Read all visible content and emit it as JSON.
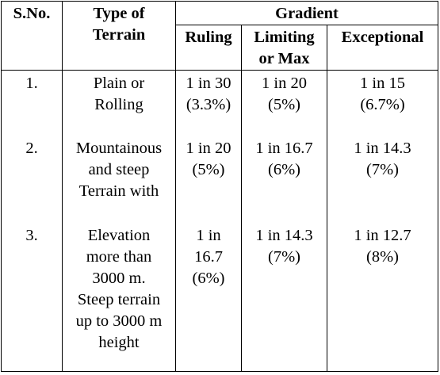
{
  "header": {
    "sno": "S.No.",
    "type_line1": "Type of",
    "type_line2": "Terrain",
    "gradient": "Gradient",
    "ruling": "Ruling",
    "limiting_line1": "Limiting",
    "limiting_line2": "or Max",
    "exceptional": "Exceptional"
  },
  "rows": [
    {
      "sno": "1.",
      "terrain": [
        "Plain or",
        "Rolling"
      ],
      "ruling": [
        "1 in 30",
        "(3.3%)"
      ],
      "limiting": [
        "1 in 20",
        "(5%)"
      ],
      "exceptional": [
        "1 in 15",
        "(6.7%)"
      ]
    },
    {
      "sno": "2.",
      "terrain": [
        "Mountainous",
        "and steep",
        "Terrain with"
      ],
      "ruling": [
        "1 in 20",
        "(5%)"
      ],
      "limiting": [
        "1 in 16.7",
        "(6%)"
      ],
      "exceptional": [
        "1 in 14.3",
        "(7%)"
      ]
    },
    {
      "sno": "3.",
      "terrain": [
        "Elevation",
        "more than",
        "3000 m.",
        "Steep terrain",
        "up to 3000 m",
        "height"
      ],
      "ruling": [
        "1 in",
        "16.7",
        "(6%)"
      ],
      "limiting": [
        "1 in 14.3",
        "(7%)"
      ],
      "exceptional": [
        "1 in 12.7",
        "(8%)"
      ]
    }
  ]
}
